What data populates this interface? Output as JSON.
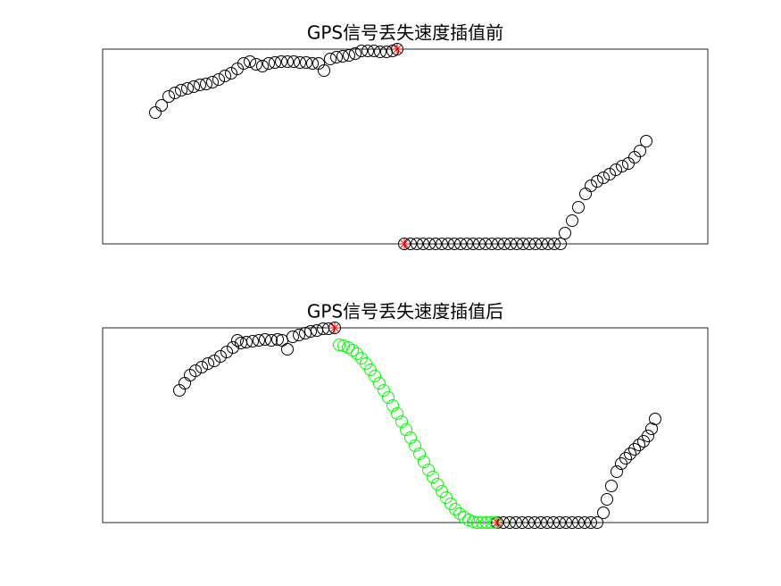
{
  "chart_data": [
    {
      "type": "scatter",
      "title": "GPS信号丢失速度插值前",
      "xlim": [
        0,
        678
      ],
      "ylim": [
        0,
        218
      ],
      "series": [
        {
          "color": "#000000",
          "marker": "o",
          "x": [
            59,
            66,
            74,
            81,
            88,
            95,
            102,
            109,
            116,
            123,
            130,
            137,
            144,
            151,
            158,
            165,
            172,
            179,
            186,
            193,
            200,
            207,
            214,
            221,
            228,
            235,
            242,
            248,
            255,
            262,
            269,
            276,
            283,
            290,
            297,
            304,
            311,
            318,
            325,
            330,
            338,
            345,
            352,
            359,
            366,
            373,
            380,
            387,
            394,
            401,
            408,
            415,
            422,
            429,
            436,
            443,
            450,
            457,
            464,
            471,
            478,
            485,
            492,
            499,
            506,
            513,
            518,
            526,
            533,
            541,
            547,
            554,
            561,
            568,
            575,
            582,
            589,
            596,
            602,
            609
          ],
          "values": [
            147,
            155,
            165,
            169,
            172,
            174,
            176,
            178,
            179,
            181,
            184,
            188,
            191,
            196,
            202,
            204,
            201,
            199,
            202,
            203,
            204,
            204,
            204,
            203,
            203,
            202,
            202,
            194,
            207,
            209,
            210,
            211,
            213,
            216,
            216,
            216,
            215,
            215,
            216,
            218,
            0,
            0,
            0,
            0,
            0,
            0,
            0,
            0,
            0,
            0,
            0,
            0,
            0,
            0,
            0,
            0,
            0,
            0,
            0,
            0,
            0,
            0,
            0,
            0,
            0,
            0,
            12,
            26,
            41,
            56,
            65,
            70,
            74,
            78,
            83,
            87,
            90,
            97,
            104,
            115
          ]
        },
        {
          "color": "#ff0000",
          "marker": "*",
          "x": [
            330,
            338
          ],
          "values": [
            218,
            0
          ]
        }
      ]
    },
    {
      "type": "scatter",
      "title": "GPS信号丢失速度插值后",
      "xlim": [
        0,
        678
      ],
      "ylim": [
        0,
        218
      ],
      "series": [
        {
          "color": "#000000",
          "marker": "o",
          "x": [
            86,
            92,
            98,
            104,
            111,
            118,
            125,
            132,
            139,
            146,
            151,
            155,
            161,
            168,
            175,
            182,
            189,
            196,
            201,
            207,
            213,
            220,
            227,
            233,
            240,
            247,
            253,
            260,
            442,
            449,
            456,
            463,
            470,
            477,
            484,
            491,
            498,
            505,
            512,
            519,
            526,
            533,
            540,
            547,
            554,
            561,
            565,
            570,
            576,
            581,
            586,
            591,
            596,
            601,
            606,
            611,
            615,
            619
          ],
          "values": [
            148,
            156,
            165,
            170,
            174,
            178,
            181,
            186,
            191,
            196,
            204,
            201,
            202,
            203,
            204,
            205,
            204,
            205,
            204,
            194,
            208,
            210,
            212,
            214,
            215,
            217,
            217,
            218,
            0,
            0,
            0,
            0,
            0,
            0,
            0,
            0,
            0,
            0,
            0,
            0,
            0,
            0,
            0,
            0,
            0,
            11,
            26,
            41,
            57,
            66,
            72,
            77,
            82,
            87,
            91,
            97,
            105,
            116
          ]
        },
        {
          "color": "#00ff00",
          "marker": "o",
          "x": [
            265,
            270,
            275,
            280,
            285,
            290,
            295,
            300,
            305,
            310,
            315,
            320,
            325,
            330,
            335,
            340,
            345,
            350,
            355,
            360,
            365,
            370,
            375,
            380,
            385,
            390,
            395,
            400,
            405,
            410,
            415,
            420,
            425,
            430,
            435,
            440
          ],
          "values": [
            199,
            198,
            196,
            193,
            189,
            184,
            178,
            171,
            164,
            156,
            148,
            140,
            131,
            122,
            113,
            104,
            95,
            86,
            77,
            68,
            59,
            51,
            43,
            35,
            28,
            21,
            15,
            10,
            6,
            3,
            1,
            0,
            0,
            0,
            0,
            0
          ]
        },
        {
          "color": "#ff0000",
          "marker": "*",
          "x": [
            260,
            442
          ],
          "values": [
            218,
            0
          ]
        }
      ]
    }
  ]
}
